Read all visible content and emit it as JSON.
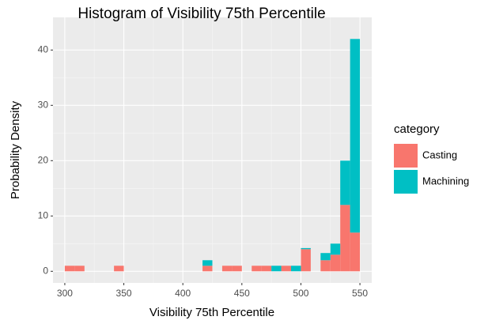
{
  "chart_data": {
    "type": "histogram",
    "title": "Histogram of Visibility 75th Percentile",
    "x_label": "Visibility 75th Percentile",
    "y_label": "Probability Density",
    "legend_title": "category",
    "bins": [
      300,
      308.33,
      316.67,
      325,
      333.33,
      341.67,
      350,
      358.33,
      366.67,
      375,
      383.33,
      391.67,
      400,
      408.33,
      416.67,
      425,
      433.33,
      441.67,
      450,
      458.33,
      466.67,
      475,
      483.33,
      491.67,
      500,
      508.33,
      516.67,
      525,
      533.33,
      541.67,
      550
    ],
    "series": [
      {
        "name": "Casting",
        "color": "#f8766d",
        "values": [
          1,
          1,
          0,
          0,
          0,
          1,
          0,
          0,
          0,
          0,
          0,
          0,
          0,
          0,
          1,
          0,
          1,
          1,
          0,
          1,
          1,
          0,
          1,
          0,
          4,
          0,
          2,
          3,
          12,
          7
        ]
      },
      {
        "name": "Machining",
        "color": "#00bfc4",
        "values": [
          0,
          0,
          0,
          0,
          0,
          0,
          0,
          0,
          0,
          0,
          0,
          0,
          0,
          0,
          1,
          0,
          0,
          0,
          0,
          0,
          0,
          1,
          0,
          1,
          0.2,
          0,
          1.3,
          2,
          8,
          35
        ]
      }
    ],
    "xlim": [
      290,
      560
    ],
    "ylim": [
      -2.1,
      45.9
    ],
    "xticks": [
      300,
      350,
      400,
      450,
      500,
      550
    ],
    "yticks": [
      0,
      10,
      20,
      30,
      40
    ],
    "grid": true,
    "stacked": true,
    "legend": "right"
  }
}
